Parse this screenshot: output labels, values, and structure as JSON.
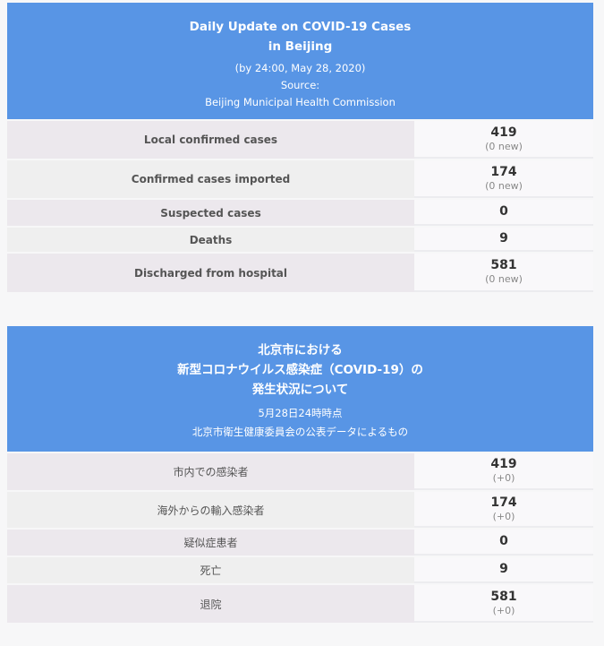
{
  "english": {
    "title_line1": "Daily Update on COVID-19 Cases",
    "title_line2": "in Beijing",
    "date": "(by 24:00, May 28, 2020)",
    "source_label": "Source:",
    "source": "Beijing Municipal Health Commission",
    "rows": [
      {
        "label": "Local confirmed cases",
        "value": "419",
        "new": "(0 new)"
      },
      {
        "label": "Confirmed cases imported",
        "value": "174",
        "new": "(0 new)"
      },
      {
        "label": "Suspected cases",
        "value": "0"
      },
      {
        "label": "Deaths",
        "value": "9"
      },
      {
        "label": "Discharged from hospital",
        "value": "581",
        "new": "(0 new)"
      }
    ]
  },
  "japanese": {
    "title_line1": "北京市における",
    "title_line2": "新型コロナウイルス感染症（COVID-19）の",
    "title_line3": "発生状況について",
    "date": "5月28日24時時点",
    "source": "北京市衛生健康委員会の公表データによるもの",
    "rows": [
      {
        "label": "市内での感染者",
        "value": "419",
        "new": "(+0)"
      },
      {
        "label": "海外からの輸入感染者",
        "value": "174",
        "new": "(+0)"
      },
      {
        "label": "疑似症患者",
        "value": "0"
      },
      {
        "label": "死亡",
        "value": "9"
      },
      {
        "label": "退院",
        "value": "581",
        "new": "(+0)"
      }
    ]
  },
  "colors": {
    "header": "#5895e5",
    "label_bg": "#ece8ed",
    "value_bg": "#f9f8fa"
  }
}
